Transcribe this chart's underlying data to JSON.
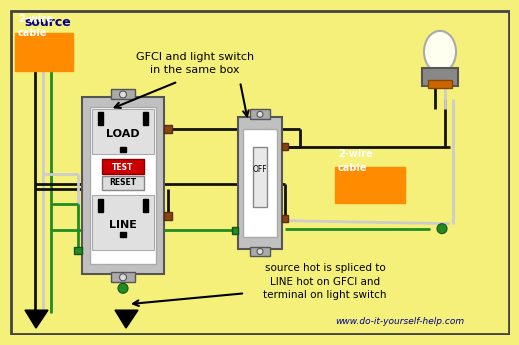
{
  "bg_color": "#f5f07a",
  "title_text": "www.do-it-yourself-help.com",
  "source_label": "source",
  "cable_label_1": "2-wire\ncable",
  "cable_label_2": "2-wire\ncable",
  "annotation_1": "GFCI and light switch\nin the same box",
  "annotation_2": "source hot is spliced to\nLINE hot on GFCI and\nterminal on light switch",
  "gfci_labels": [
    "LOAD",
    "TEST",
    "RESET",
    "LINE"
  ],
  "switch_label": "OFF",
  "wire_black": "#111111",
  "wire_white": "#cccccc",
  "wire_green": "#228B22",
  "orange_box": "#FF8C00",
  "dark_blue": "#00008B",
  "light_gray": "#c0c0c0",
  "brown": "#8B4513"
}
